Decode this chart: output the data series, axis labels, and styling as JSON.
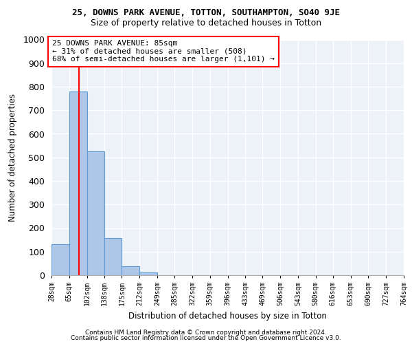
{
  "title1": "25, DOWNS PARK AVENUE, TOTTON, SOUTHAMPTON, SO40 9JE",
  "title2": "Size of property relative to detached houses in Totton",
  "xlabel": "Distribution of detached houses by size in Totton",
  "ylabel": "Number of detached properties",
  "bin_edges": [
    28,
    65,
    102,
    138,
    175,
    212,
    249,
    285,
    322,
    359,
    396,
    433,
    469,
    506,
    543,
    580,
    616,
    653,
    690,
    727,
    764
  ],
  "bar_heights": [
    130,
    780,
    525,
    158,
    37,
    12,
    0,
    0,
    0,
    0,
    0,
    0,
    0,
    0,
    0,
    0,
    0,
    0,
    0,
    0
  ],
  "bar_color": "#aec6e8",
  "bar_edgecolor": "#5b9bd5",
  "property_line_x": 85,
  "property_line_color": "red",
  "ylim": [
    0,
    1000
  ],
  "yticks": [
    0,
    100,
    200,
    300,
    400,
    500,
    600,
    700,
    800,
    900,
    1000
  ],
  "annotation_line1": "25 DOWNS PARK AVENUE: 85sqm",
  "annotation_line2": "← 31% of detached houses are smaller (508)",
  "annotation_line3": "68% of semi-detached houses are larger (1,101) →",
  "annotation_box_color": "red",
  "footer1": "Contains HM Land Registry data © Crown copyright and database right 2024.",
  "footer2": "Contains public sector information licensed under the Open Government Licence v3.0.",
  "background_color": "#edf2f9",
  "grid_color": "white",
  "tick_labels": [
    "28sqm",
    "65sqm",
    "102sqm",
    "138sqm",
    "175sqm",
    "212sqm",
    "249sqm",
    "285sqm",
    "322sqm",
    "359sqm",
    "396sqm",
    "433sqm",
    "469sqm",
    "506sqm",
    "543sqm",
    "580sqm",
    "616sqm",
    "653sqm",
    "690sqm",
    "727sqm",
    "764sqm"
  ]
}
